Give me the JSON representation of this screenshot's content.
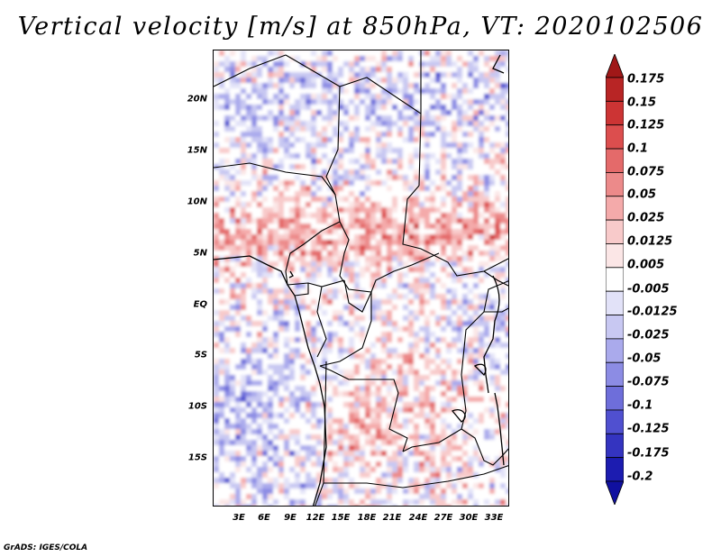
{
  "title": "Vertical velocity [m/s] at 850hPa, VT: 2020102506",
  "footer": "GrADS: IGES/COLA",
  "map": {
    "lat_labels": [
      "20N",
      "15N",
      "10N",
      "5N",
      "EQ",
      "5S",
      "10S",
      "15S"
    ],
    "lat_values": [
      20,
      15,
      10,
      5,
      0,
      -5,
      -10,
      -15
    ],
    "lat_range": [
      -20,
      24.5
    ],
    "lon_labels": [
      "3E",
      "6E",
      "9E",
      "12E",
      "15E",
      "18E",
      "21E",
      "24E",
      "27E",
      "30E",
      "33E"
    ],
    "lon_values": [
      3,
      6,
      9,
      12,
      15,
      18,
      21,
      24,
      27,
      30,
      33
    ],
    "lon_range": [
      0,
      34.5
    ]
  },
  "colorbar": {
    "labels": [
      "0.175",
      "0.15",
      "0.125",
      "0.1",
      "0.075",
      "0.05",
      "0.025",
      "0.0125",
      "0.005",
      "-0.005",
      "-0.0125",
      "-0.025",
      "-0.05",
      "-0.075",
      "-0.1",
      "-0.125",
      "-0.175",
      "-0.2"
    ],
    "colors": [
      "#a01818",
      "#b82525",
      "#cc3434",
      "#dc4e4e",
      "#e46a6a",
      "#ec8a8a",
      "#f4aaaa",
      "#f8caca",
      "#fbe6e6",
      "#ffffff",
      "#e2e2f8",
      "#c8c8f2",
      "#aaaaec",
      "#8c8ce4",
      "#6e6eda",
      "#5050d0",
      "#3434c0",
      "#1c1cb0",
      "#1010a0"
    ]
  }
}
